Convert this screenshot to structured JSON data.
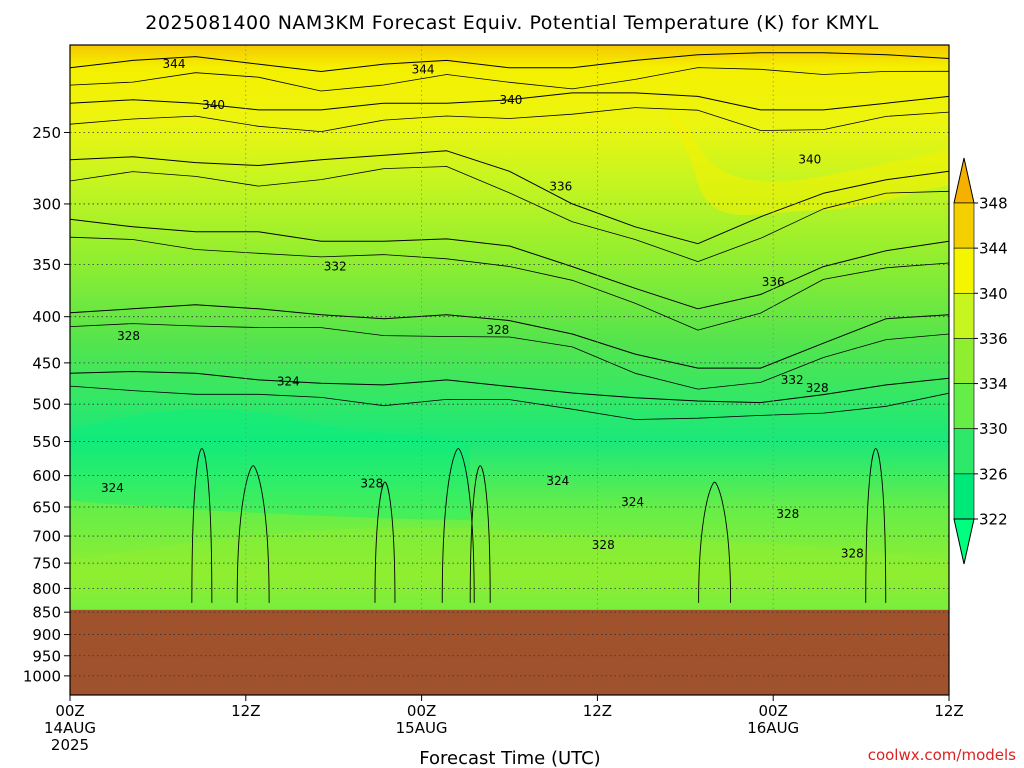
{
  "title": "2025081400 NAM3KM Forecast Equiv. Potential Temperature (K) for KMYL",
  "xlabel": "Forecast Time (UTC)",
  "footer": "coolwx.com/models",
  "colors": {
    "ground": "#a0522d",
    "frame": "#000000"
  },
  "chart_data": {
    "type": "heatmap",
    "title": "2025081400 NAM3KM Forecast Equiv. Potential Temperature (K) for KMYL",
    "xlabel": "Forecast Time (UTC)",
    "ylabel": "",
    "xlim_hours": [
      0,
      60
    ],
    "y_axis_scale": "log-pressure",
    "ylim_hpa": [
      1050,
      200
    ],
    "x_ticks": [
      {
        "hour": 0,
        "lines": [
          "00Z",
          "14AUG",
          "2025"
        ]
      },
      {
        "hour": 12,
        "lines": [
          "12Z"
        ]
      },
      {
        "hour": 24,
        "lines": [
          "00Z",
          "15AUG"
        ]
      },
      {
        "hour": 36,
        "lines": [
          "12Z"
        ]
      },
      {
        "hour": 48,
        "lines": [
          "00Z",
          "16AUG"
        ]
      },
      {
        "hour": 60,
        "lines": [
          "12Z"
        ]
      }
    ],
    "y_ticks": [
      "250",
      "300",
      "350",
      "400",
      "450",
      "500",
      "550",
      "600",
      "650",
      "700",
      "750",
      "800",
      "850",
      "900",
      "950",
      "1000"
    ],
    "y_tick_values": [
      250,
      300,
      350,
      400,
      450,
      500,
      550,
      600,
      650,
      700,
      750,
      800,
      850,
      900,
      950,
      1000
    ],
    "ground_top_hpa": 845,
    "grid": "dotted",
    "colorbar": {
      "levels": [
        322,
        326,
        330,
        334,
        336,
        340,
        344,
        348
      ],
      "labels": [
        "322",
        "326",
        "330",
        "334",
        "336",
        "340",
        "344",
        "348"
      ],
      "colors": [
        "#00ff80",
        "#00e878",
        "#2ee86a",
        "#66ee48",
        "#90ee30",
        "#c6f520",
        "#f5f500",
        "#f5d000",
        "#f5b000"
      ],
      "extend": "both"
    },
    "contour_labels": [
      {
        "text": "344",
        "hour": 7.1,
        "hpa": 210
      },
      {
        "text": "344",
        "hour": 24.1,
        "hpa": 213
      },
      {
        "text": "340",
        "hour": 9.8,
        "hpa": 233
      },
      {
        "text": "340",
        "hour": 30.1,
        "hpa": 230
      },
      {
        "text": "340",
        "hour": 50.5,
        "hpa": 268
      },
      {
        "text": "336",
        "hour": 33.5,
        "hpa": 287
      },
      {
        "text": "336",
        "hour": 48,
        "hpa": 366
      },
      {
        "text": "332",
        "hour": 18.1,
        "hpa": 352
      },
      {
        "text": "328",
        "hour": 4.0,
        "hpa": 420
      },
      {
        "text": "328",
        "hour": 29.2,
        "hpa": 414
      },
      {
        "text": "324",
        "hour": 14.9,
        "hpa": 472
      },
      {
        "text": "332",
        "hour": 49.3,
        "hpa": 470
      },
      {
        "text": "328",
        "hour": 51,
        "hpa": 480
      },
      {
        "text": "324",
        "hour": 2.9,
        "hpa": 619
      },
      {
        "text": "328",
        "hour": 20.6,
        "hpa": 612
      },
      {
        "text": "324",
        "hour": 33.3,
        "hpa": 608
      },
      {
        "text": "324",
        "hour": 38.4,
        "hpa": 642
      },
      {
        "text": "328",
        "hour": 49.0,
        "hpa": 662
      },
      {
        "text": "328",
        "hour": 36.4,
        "hpa": 716
      },
      {
        "text": "328",
        "hour": 53.4,
        "hpa": 732
      }
    ],
    "isopleths": [
      {
        "level": 344,
        "hpa": [
          212,
          208,
          206,
          210,
          214,
          210,
          208,
          212,
          212,
          208,
          205,
          204,
          204,
          205,
          207
        ]
      },
      {
        "level": 340,
        "hpa": [
          232,
          230,
          232,
          236,
          236,
          232,
          232,
          230,
          226,
          226,
          228,
          236,
          236,
          232,
          228
        ]
      },
      {
        "level": 336,
        "hpa": [
          268,
          266,
          270,
          272,
          268,
          265,
          262,
          276,
          300,
          318,
          332,
          310,
          292,
          282,
          276
        ]
      },
      {
        "level": 332,
        "hpa": [
          312,
          318,
          322,
          322,
          330,
          330,
          328,
          334,
          352,
          372,
          392,
          378,
          352,
          338,
          330
        ]
      },
      {
        "level": 328,
        "hpa": [
          396,
          392,
          388,
          392,
          398,
          402,
          398,
          404,
          418,
          440,
          456,
          456,
          428,
          402,
          398
        ]
      },
      {
        "level": 324,
        "hpa": [
          462,
          460,
          462,
          470,
          474,
          476,
          470,
          478,
          486,
          492,
          496,
          498,
          488,
          476,
          468
        ]
      }
    ]
  }
}
